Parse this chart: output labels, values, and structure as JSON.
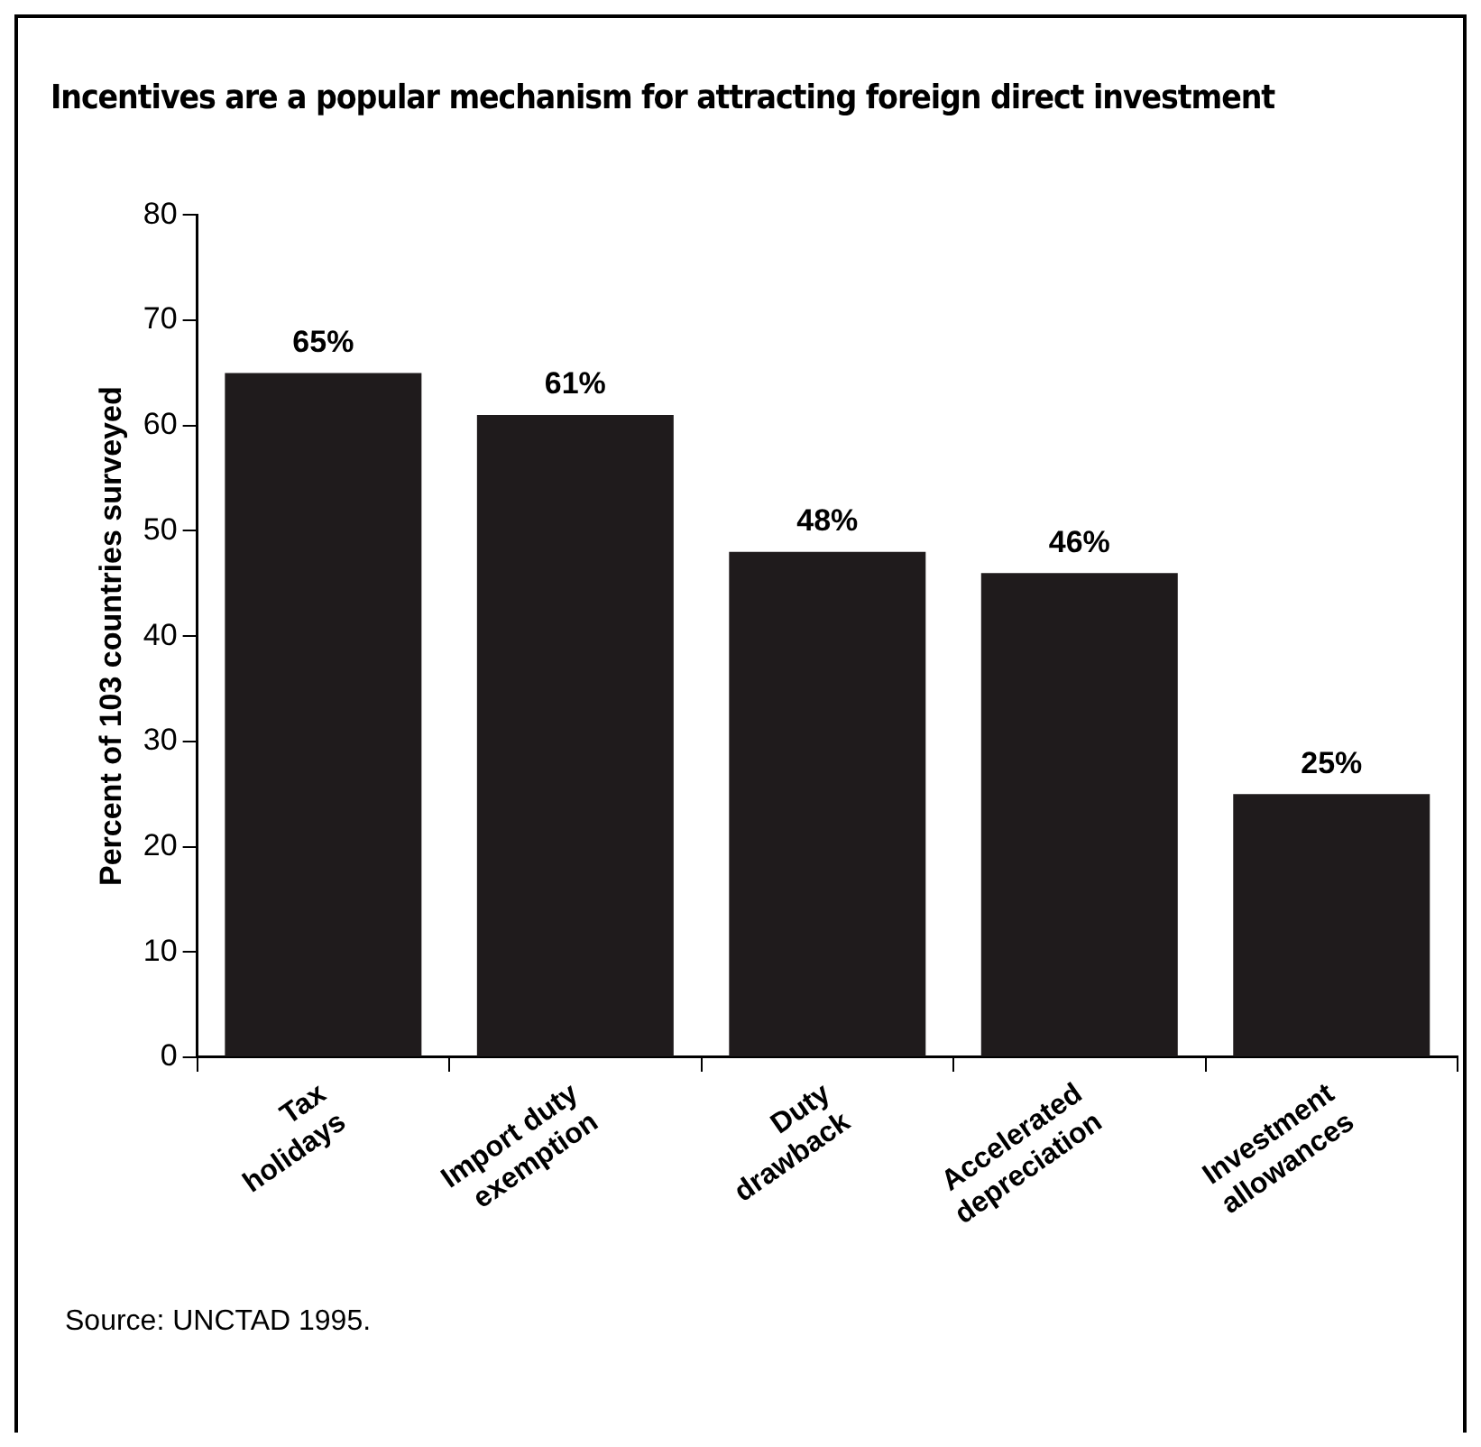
{
  "chart_data": {
    "type": "bar",
    "title": "Incentives are a popular mechanism for attracting foreign direct investment",
    "ylabel": "Percent of 103 countries surveyed",
    "categories": [
      "Tax holidays",
      "Import duty exemption",
      "Duty drawback",
      "Accelerated depreciation",
      "Investment allowances"
    ],
    "values": [
      65,
      61,
      48,
      46,
      25
    ],
    "value_labels": [
      "65%",
      "61%",
      "48%",
      "46%",
      "25%"
    ],
    "color": "#1f1b1c",
    "ylim": [
      0,
      80
    ],
    "yticks": [
      0,
      10,
      20,
      30,
      40,
      50,
      60,
      70,
      80
    ],
    "grid": false,
    "legend": false,
    "annotations": [
      "Source:  UNCTAD 1995."
    ]
  }
}
